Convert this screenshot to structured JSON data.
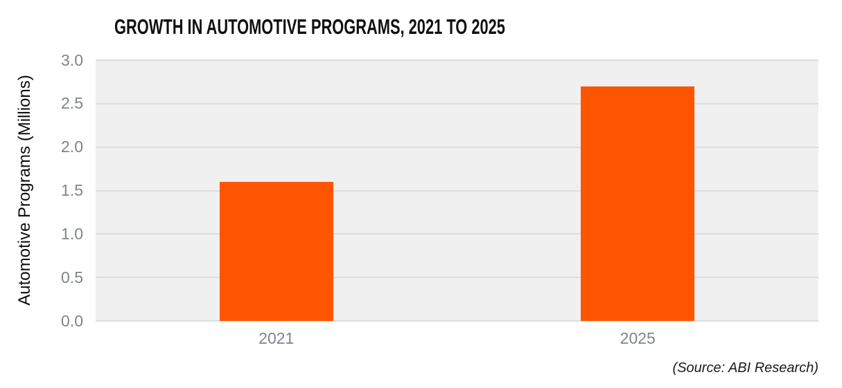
{
  "chart_data": {
    "type": "bar",
    "title": "GROWTH IN AUTOMOTIVE PROGRAMS, 2021 TO 2025",
    "categories": [
      "2021",
      "2025"
    ],
    "values": [
      1.6,
      2.7
    ],
    "xlabel": "",
    "ylabel": "Automotive Programs (Millions)",
    "ylim": [
      0.0,
      3.0
    ],
    "ytick_labels": [
      "3.0",
      "2.5",
      "2.0",
      "1.5",
      "1.0",
      "0.5",
      "0.0"
    ],
    "grid": "horizontal",
    "legend_position": "none",
    "colors": {
      "bar": "#FF5500",
      "plot_background": "#F0F0F0",
      "gridline": "#DDDDDD",
      "tick_text": "#7E838D",
      "title_text": "#101010",
      "axis_title_text": "#0D0D0D"
    }
  },
  "source_note": "(Source: ABI Research)"
}
